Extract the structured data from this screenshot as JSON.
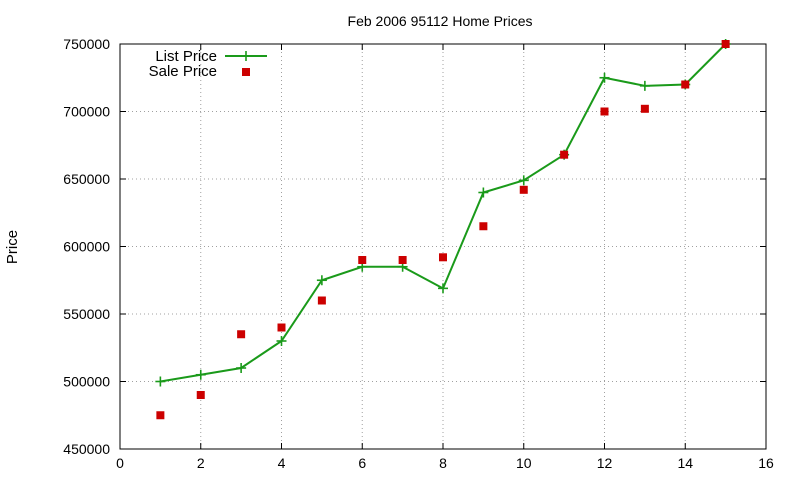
{
  "chart_data": {
    "type": "line",
    "title": "Feb 2006 95112 Home Prices",
    "xlabel": "",
    "ylabel": "Price",
    "xlim": [
      0,
      16
    ],
    "ylim": [
      450000,
      750000
    ],
    "xticks": [
      0,
      2,
      4,
      6,
      8,
      10,
      12,
      14,
      16
    ],
    "yticks": [
      450000,
      500000,
      550000,
      600000,
      650000,
      700000,
      750000
    ],
    "xtick_labels": [
      "0",
      "2",
      "4",
      "6",
      "8",
      "10",
      "12",
      "14",
      "16"
    ],
    "ytick_labels": [
      "450000",
      "500000",
      "550000",
      "600000",
      "650000",
      "700000",
      "750000"
    ],
    "grid": true,
    "legend_position": "top-left",
    "series": [
      {
        "name": "List Price",
        "style": "line-with-plus-markers",
        "color": "#1a9a1a",
        "x": [
          1,
          2,
          3,
          4,
          5,
          6,
          7,
          8,
          9,
          10,
          11,
          12,
          13,
          14,
          15
        ],
        "values": [
          500000,
          505000,
          510000,
          530000,
          575000,
          585000,
          585000,
          569000,
          640000,
          649000,
          668000,
          725000,
          719000,
          720000,
          750000
        ]
      },
      {
        "name": "Sale Price",
        "style": "square-markers",
        "color": "#cc0000",
        "x": [
          1,
          2,
          3,
          4,
          5,
          6,
          7,
          8,
          9,
          10,
          11,
          12,
          13,
          14,
          15
        ],
        "values": [
          475000,
          490000,
          535000,
          540000,
          560000,
          590000,
          590000,
          592000,
          615000,
          642000,
          668000,
          700000,
          702000,
          720000,
          750000
        ]
      }
    ]
  }
}
